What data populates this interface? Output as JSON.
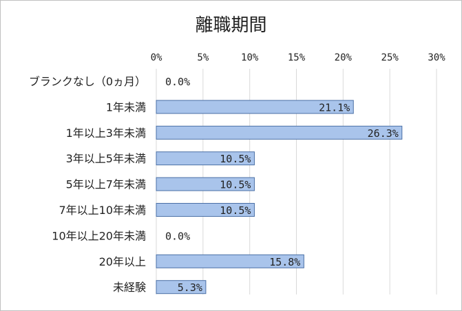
{
  "chart_data": {
    "type": "bar",
    "orientation": "horizontal",
    "title": "離職期間",
    "categories": [
      "ブランクなし（0ヵ月）",
      "1年未満",
      "1年以上3年未満",
      "3年以上5年未満",
      "5年以上7年未満",
      "7年以上10年未満",
      "10年以上20年未満",
      "20年以上",
      "未経験"
    ],
    "values": [
      0.0,
      21.1,
      26.3,
      10.5,
      10.5,
      10.5,
      0.0,
      15.8,
      5.3
    ],
    "data_labels": [
      "0.0%",
      "21.1%",
      "26.3%",
      "10.5%",
      "10.5%",
      "10.5%",
      "0.0%",
      "15.8%",
      "5.3%"
    ],
    "xlim": [
      0,
      30
    ],
    "x_ticks": [
      0,
      5,
      10,
      15,
      20,
      25,
      30
    ],
    "x_tick_labels": [
      "0%",
      "5%",
      "10%",
      "15%",
      "20%",
      "25%",
      "30%"
    ],
    "xlabel": "",
    "ylabel": "",
    "x_axis_position": "top",
    "grid": true,
    "legend": false,
    "colors": {
      "bar_fill": "#a9c4eb",
      "bar_stroke": "#4a6fa5",
      "grid": "#d9d9d9",
      "frame": "#bfbfbf"
    }
  }
}
